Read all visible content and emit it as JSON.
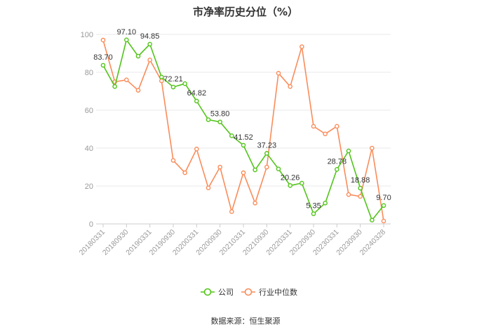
{
  "chart_data": {
    "type": "line",
    "title": "市净率历史分位（%）",
    "ylim": [
      0,
      100
    ],
    "yticks": [
      0,
      20,
      40,
      60,
      80,
      100
    ],
    "x": [
      "20180331",
      "20180630",
      "20180930",
      "20181231",
      "20190331",
      "20190630",
      "20190930",
      "20191231",
      "20200331",
      "20200630",
      "20200930",
      "20201231",
      "20210331",
      "20210630",
      "20210930",
      "20211231",
      "20220331",
      "20220630",
      "20220930",
      "20221231",
      "20230331",
      "20230630",
      "20230930",
      "20231231",
      "20240328"
    ],
    "xtick_labels": [
      "20180331",
      "20180930",
      "20190331",
      "20190930",
      "20200331",
      "20200930",
      "20210331",
      "20210930",
      "20220331",
      "20220930",
      "20230331",
      "20230930",
      "20240328"
    ],
    "grid": true,
    "legend_position": "bottom-center",
    "series": [
      {
        "name": "公司",
        "color": "#52c41a",
        "values": [
          83.7,
          72.5,
          97.1,
          88.5,
          94.85,
          77.5,
          72.21,
          74.0,
          64.82,
          55.0,
          53.8,
          46.5,
          41.52,
          28.5,
          37.23,
          29.0,
          20.26,
          21.5,
          5.35,
          11.0,
          28.78,
          38.5,
          18.88,
          2.0,
          9.7
        ],
        "labels": {
          "0": "83.70",
          "2": "97.10",
          "4": "94.85",
          "6": "72.21",
          "8": "64.82",
          "10": "53.80",
          "12": "41.52",
          "14": "37.23",
          "16": "20.26",
          "18": "5.35",
          "20": "28.78",
          "22": "18.88",
          "24": "9.70"
        }
      },
      {
        "name": "行业中位数",
        "color": "#fa8c5a",
        "values": [
          97.0,
          75.0,
          76.0,
          70.5,
          86.5,
          75.5,
          33.5,
          27.0,
          39.5,
          19.0,
          30.0,
          6.5,
          27.0,
          11.0,
          30.0,
          79.5,
          72.5,
          93.5,
          51.5,
          47.5,
          51.5,
          15.5,
          14.5,
          40.0,
          1.5
        ]
      }
    ]
  },
  "source_text": "数据来源：恒生聚源"
}
